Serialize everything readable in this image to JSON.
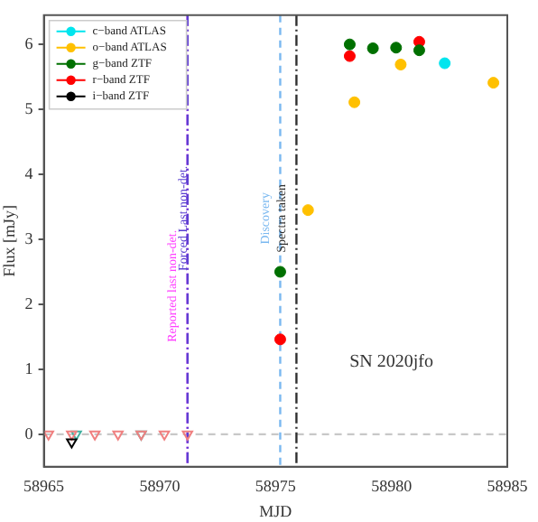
{
  "chart_data": {
    "type": "scatter",
    "xlabel": "MJD",
    "ylabel": "Flux [mJy]",
    "xlim": [
      58965,
      58985
    ],
    "ylim": [
      -0.5,
      6.45
    ],
    "xticks": [
      58965,
      58970,
      58975,
      58980,
      58985
    ],
    "yticks": [
      0,
      1,
      2,
      3,
      4,
      5,
      6
    ],
    "grid": false,
    "legend": "top left",
    "series": [
      {
        "name": "c−band ATLAS",
        "color": "#00e5ee",
        "marker": "circle",
        "x": [
          58982.3
        ],
        "values": [
          5.71
        ]
      },
      {
        "name": "o−band ATLAS",
        "color": "#ffc000",
        "marker": "circle",
        "x": [
          58976.4,
          58978.4,
          58980.4,
          58984.4
        ],
        "values": [
          3.45,
          5.11,
          5.69,
          5.41
        ]
      },
      {
        "name": "g−band ZTF",
        "color": "#007000",
        "marker": "circle",
        "x": [
          58975.2,
          58978.2,
          58979.2,
          58980.2,
          58981.2
        ],
        "values": [
          2.5,
          6.0,
          5.94,
          5.95,
          5.91
        ]
      },
      {
        "name": "r−band ZTF",
        "color": "#ff0000",
        "marker": "circle",
        "x": [
          58975.2,
          58978.2,
          58981.2
        ],
        "values": [
          1.46,
          5.82,
          6.04
        ]
      },
      {
        "name": "i−band ZTF",
        "color": "#000000",
        "marker": "triangle",
        "x": [
          58966.2
        ],
        "values": [
          -0.12
        ]
      },
      {
        "color": "#f08080",
        "marker": "triangle",
        "x": [
          58965.2,
          58966.2,
          58967.2,
          58968.2,
          58969.2,
          58970.2,
          58971.2
        ],
        "values": [
          0,
          0,
          0,
          0,
          0,
          0,
          0
        ]
      },
      {
        "color": "#40b0a0",
        "marker": "triangle",
        "x": [
          58966.4,
          58969.2
        ],
        "values": [
          0,
          0
        ]
      }
    ],
    "ref_lines": [
      {
        "axis": "y",
        "value": 0,
        "color": "#c8c8c8",
        "line_style": "dashed"
      },
      {
        "axis": "x",
        "value": 58971.2,
        "label": "Reported last non-det.",
        "color": "#ff40ff",
        "line_style": "dashdot"
      },
      {
        "axis": "x",
        "value": 58971.2,
        "label": "Forced Last non-det.",
        "color": "#5a3fd0",
        "line_style": "dashdot"
      },
      {
        "axis": "x",
        "value": 58975.2,
        "label": "Discovery",
        "color": "#7ab8f0",
        "line_style": "dashed"
      },
      {
        "axis": "x",
        "value": 58975.9,
        "label": "Spectra taken",
        "color": "#303030",
        "line_style": "dashdot"
      }
    ],
    "annotations": [
      "SN 2020jfo"
    ]
  }
}
